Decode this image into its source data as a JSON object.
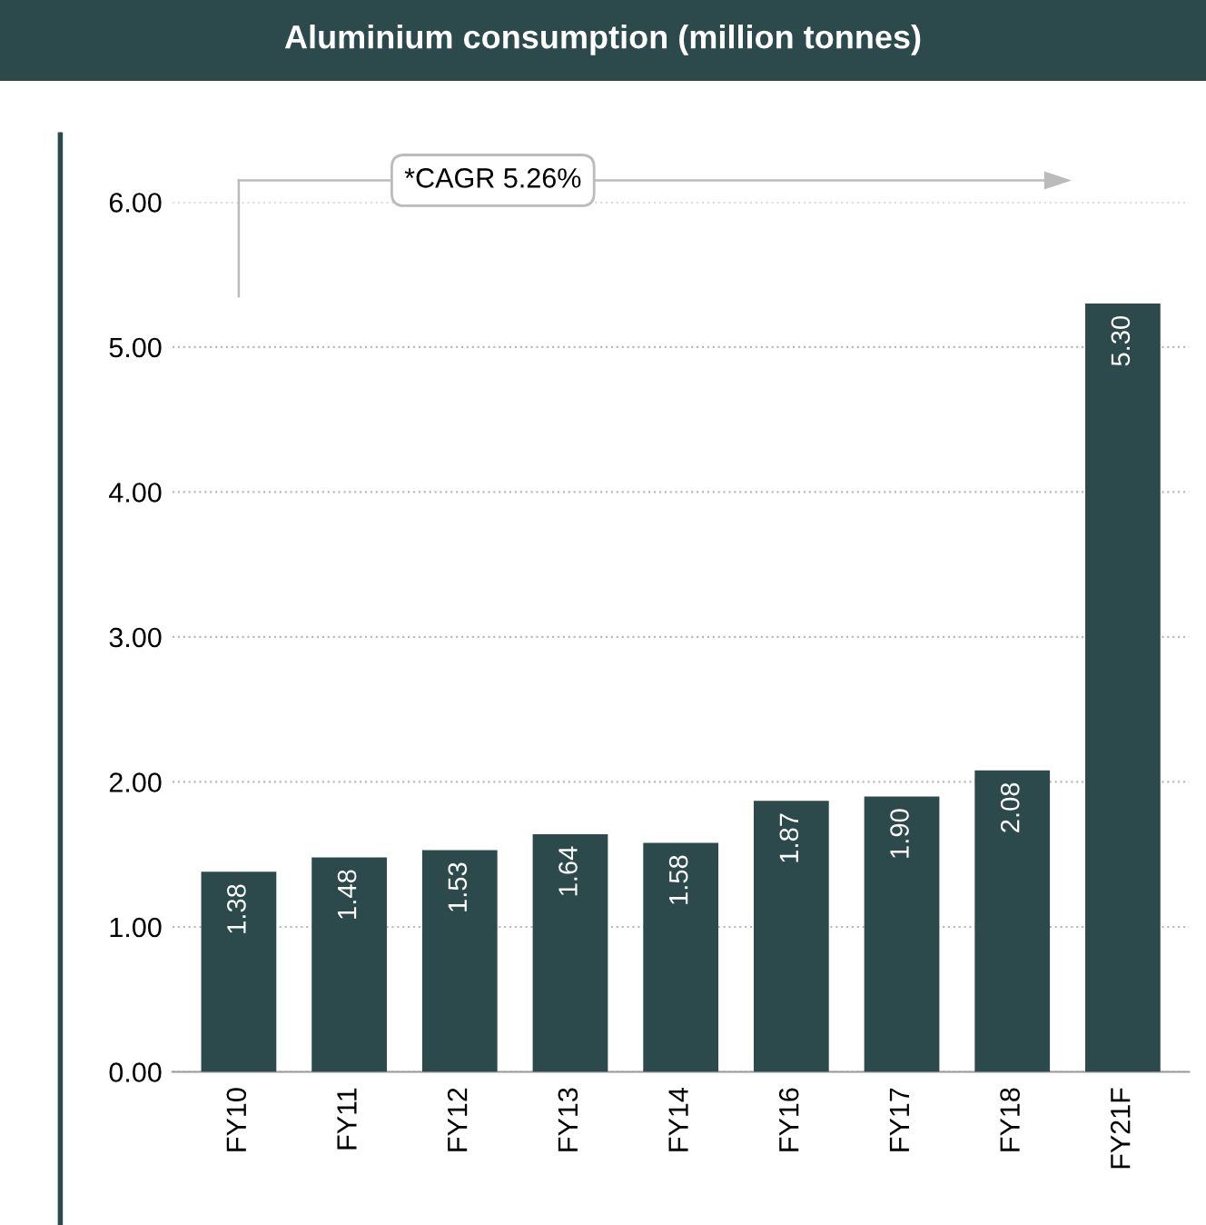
{
  "chart_data": {
    "type": "bar",
    "title": "Aluminium consumption (million tonnes)",
    "categories": [
      "FY10",
      "FY11",
      "FY12",
      "FY13",
      "FY14",
      "FY16",
      "FY17",
      "FY18",
      "FY21F"
    ],
    "values": [
      1.38,
      1.48,
      1.53,
      1.64,
      1.58,
      1.87,
      1.9,
      2.08,
      5.3
    ],
    "color": "#2c4a4b",
    "ylim": [
      0,
      6
    ],
    "yticks": [
      {
        "value": 0,
        "label": "0.00"
      },
      {
        "value": 1,
        "label": "1.00"
      },
      {
        "value": 2,
        "label": "2.00"
      },
      {
        "value": 3,
        "label": "3.00"
      },
      {
        "value": 4,
        "label": "4.00"
      },
      {
        "value": 5,
        "label": "5.00"
      },
      {
        "value": 6,
        "label": "6.00"
      }
    ],
    "grid": "y",
    "value_labels": [
      "1.38",
      "1.48",
      "1.53",
      "1.64",
      "1.58",
      "1.87",
      "1.90",
      "2.08",
      "5.30"
    ],
    "annotations": [
      "*CAGR 5.26%"
    ]
  }
}
